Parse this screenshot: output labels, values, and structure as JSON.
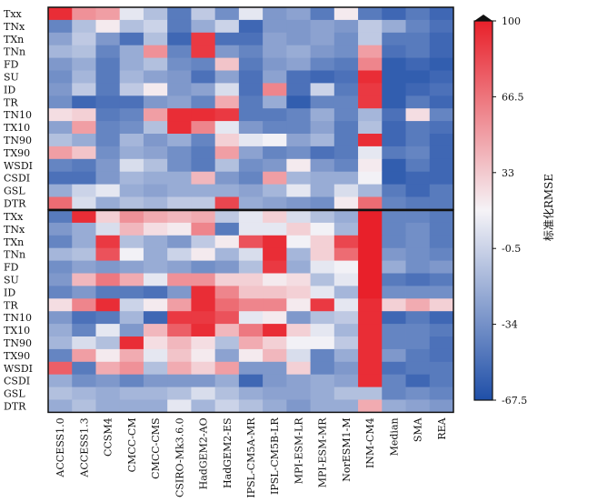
{
  "chart_data": {
    "type": "heatmap",
    "title": "",
    "colorbar": {
      "label": "标准化RMSE",
      "ticks": [
        100,
        66.5,
        33,
        -0.5,
        -34,
        -67.5
      ],
      "range": [
        -67.5,
        100
      ],
      "colors": {
        "low": "#1f4fa8",
        "mid": "#f5f3f7",
        "high": "#e8202a"
      }
    },
    "x_labels": [
      "ACCESS1.0",
      "ACCESS1.3",
      "CCSM4",
      "CMCC-CM",
      "CMCC-CMS",
      "CSIRO-Mk3.6.0",
      "HadGEM2-AO",
      "HadGEM2-ES",
      "IPSL-CM5A-MR",
      "IPSL-CM5B-LR",
      "MPI-ESM-LR",
      "MPI-ESM-MR",
      "NorESM1-M",
      "INM-CM4",
      "Median",
      "SMA",
      "REA"
    ],
    "panels": [
      {
        "y_labels": [
          "Txx",
          "TNx",
          "TXn",
          "TNn",
          "FD",
          "SU",
          "ID",
          "TR",
          "TN10",
          "TX10",
          "TN90",
          "TX90",
          "WSDI",
          "CSDI",
          "GSL",
          "DTR"
        ],
        "values": [
          [
            95,
            55,
            50,
            10,
            -10,
            -45,
            -5,
            -35,
            10,
            -30,
            -25,
            -45,
            20,
            -45,
            -55,
            -45,
            -55
          ],
          [
            -40,
            -10,
            20,
            -10,
            0,
            -45,
            -20,
            0,
            -55,
            -30,
            -30,
            -25,
            -30,
            -5,
            -20,
            -40,
            -50
          ],
          [
            -25,
            -5,
            -30,
            -50,
            -10,
            -55,
            90,
            -50,
            -50,
            -25,
            -30,
            -25,
            -35,
            -5,
            -45,
            -45,
            -55
          ],
          [
            -15,
            -10,
            -40,
            -20,
            55,
            -40,
            90,
            -30,
            -40,
            -25,
            -20,
            -30,
            -35,
            50,
            -50,
            -45,
            -55
          ],
          [
            -30,
            -20,
            -45,
            -20,
            -10,
            -35,
            -40,
            35,
            -45,
            -30,
            -25,
            -40,
            -45,
            60,
            -60,
            -55,
            -60
          ],
          [
            -35,
            -15,
            -45,
            -15,
            -25,
            -30,
            -50,
            -25,
            -50,
            -25,
            -50,
            -55,
            -50,
            95,
            -60,
            -60,
            -55
          ],
          [
            -30,
            -5,
            -45,
            -5,
            20,
            -30,
            -25,
            5,
            -50,
            60,
            -50,
            0,
            -45,
            90,
            -60,
            -55,
            -50
          ],
          [
            -35,
            -55,
            -50,
            -50,
            -30,
            -25,
            -40,
            45,
            -45,
            -20,
            -60,
            -40,
            -40,
            90,
            -60,
            -45,
            -55
          ],
          [
            25,
            30,
            -45,
            -40,
            50,
            95,
            95,
            90,
            -45,
            -45,
            -40,
            -20,
            -40,
            -15,
            -50,
            25,
            -40
          ],
          [
            -25,
            50,
            -40,
            -35,
            -10,
            95,
            60,
            10,
            -30,
            -40,
            -40,
            -25,
            -45,
            -10,
            -55,
            -45,
            -50
          ],
          [
            -10,
            -20,
            -40,
            -15,
            -30,
            -20,
            -40,
            30,
            10,
            15,
            -25,
            -15,
            -45,
            95,
            -55,
            -45,
            -55
          ],
          [
            50,
            35,
            -35,
            -20,
            -25,
            -35,
            -45,
            50,
            -25,
            -40,
            -35,
            -50,
            -45,
            10,
            -45,
            -40,
            -55
          ],
          [
            -40,
            -45,
            -30,
            5,
            -10,
            -35,
            -45,
            -10,
            -35,
            -30,
            20,
            -30,
            -40,
            20,
            -60,
            -45,
            -55
          ],
          [
            -50,
            -50,
            -30,
            -15,
            -20,
            -20,
            40,
            -30,
            -40,
            50,
            -15,
            -20,
            -20,
            15,
            -60,
            -55,
            -55
          ],
          [
            -20,
            0,
            10,
            -20,
            -25,
            -20,
            -20,
            -20,
            -25,
            -15,
            10,
            -20,
            5,
            -15,
            -45,
            -55,
            -45
          ],
          [
            70,
            5,
            -20,
            -10,
            -15,
            -5,
            -5,
            85,
            -20,
            -25,
            -30,
            -35,
            20,
            70,
            -40,
            -45,
            -45
          ]
        ]
      },
      {
        "y_labels": [
          "TXx",
          "TNx",
          "TXn",
          "TNn",
          "FD",
          "SU",
          "ID",
          "TR",
          "TN10",
          "TX10",
          "TN90",
          "TX90",
          "WSDI",
          "CSDI",
          "GSL",
          "DTR"
        ],
        "values": [
          [
            -45,
            95,
            30,
            55,
            45,
            40,
            45,
            -5,
            10,
            30,
            5,
            -10,
            -20,
            100,
            -40,
            -40,
            -45
          ],
          [
            -30,
            -20,
            5,
            40,
            25,
            20,
            60,
            -45,
            10,
            10,
            30,
            15,
            -15,
            100,
            -40,
            -35,
            -45
          ],
          [
            -40,
            -20,
            90,
            -10,
            -20,
            -30,
            -5,
            20,
            80,
            95,
            15,
            30,
            85,
            100,
            -40,
            -35,
            -45
          ],
          [
            -15,
            -10,
            80,
            15,
            -20,
            0,
            20,
            -15,
            5,
            95,
            -15,
            30,
            70,
            100,
            -30,
            -35,
            -40
          ],
          [
            -35,
            -25,
            -30,
            -25,
            -20,
            -25,
            -35,
            -30,
            -10,
            90,
            -20,
            10,
            15,
            100,
            -20,
            -35,
            -30
          ],
          [
            -30,
            40,
            65,
            45,
            10,
            55,
            55,
            30,
            30,
            20,
            25,
            -10,
            10,
            100,
            -45,
            -50,
            -45
          ],
          [
            -40,
            -30,
            -45,
            -45,
            -50,
            -30,
            95,
            60,
            35,
            35,
            30,
            10,
            -15,
            100,
            -35,
            -35,
            -35
          ],
          [
            25,
            60,
            95,
            0,
            20,
            50,
            95,
            70,
            60,
            60,
            20,
            90,
            10,
            95,
            30,
            45,
            30
          ],
          [
            -30,
            -50,
            -45,
            -15,
            -55,
            90,
            90,
            80,
            10,
            20,
            -30,
            -10,
            -5,
            95,
            -55,
            -45,
            -55
          ],
          [
            -20,
            -40,
            10,
            -30,
            40,
            75,
            95,
            40,
            65,
            95,
            30,
            10,
            -15,
            95,
            -40,
            -40,
            -45
          ],
          [
            -15,
            5,
            -10,
            95,
            25,
            40,
            25,
            -10,
            45,
            30,
            15,
            15,
            -5,
            95,
            -40,
            -40,
            -50
          ],
          [
            -40,
            50,
            20,
            45,
            10,
            35,
            20,
            -25,
            20,
            40,
            5,
            -40,
            -20,
            95,
            -30,
            -45,
            -50
          ],
          [
            75,
            -45,
            45,
            55,
            -10,
            45,
            30,
            50,
            -30,
            -30,
            30,
            -40,
            -30,
            95,
            -50,
            -45,
            -45
          ],
          [
            -20,
            -35,
            -30,
            -40,
            -30,
            -30,
            -30,
            -20,
            -55,
            -30,
            -25,
            -20,
            -25,
            95,
            -40,
            -55,
            -45
          ],
          [
            -10,
            -15,
            -20,
            -15,
            -15,
            -10,
            5,
            -10,
            -20,
            -25,
            -25,
            -20,
            -10,
            -10,
            -40,
            -35,
            -40
          ],
          [
            -20,
            -10,
            -20,
            -20,
            -20,
            10,
            -15,
            0,
            -10,
            -20,
            -30,
            -20,
            -20,
            45,
            -20,
            -25,
            -30
          ]
        ]
      }
    ]
  }
}
